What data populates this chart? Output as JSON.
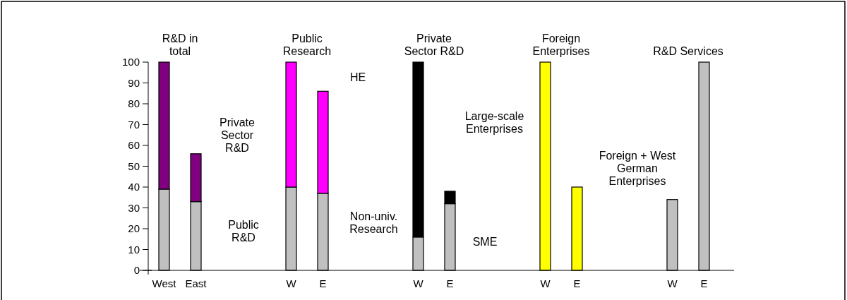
{
  "chart_data": {
    "type": "bar",
    "stacked": true,
    "grid": false,
    "categories": [
      "West",
      "East",
      null,
      null,
      "W",
      "E",
      null,
      null,
      "W",
      "E",
      null,
      null,
      "W",
      "E",
      null,
      null,
      "W",
      "E"
    ],
    "series": [
      {
        "colors": [
          "#c0c0c0",
          "#c0c0c0",
          null,
          null,
          "#c0c0c0",
          "#c0c0c0",
          null,
          null,
          "#c0c0c0",
          "#c0c0c0",
          null,
          null,
          "#ffff00",
          "#ffff00",
          null,
          null,
          "#c0c0c0",
          "#c0c0c0"
        ],
        "values": [
          39,
          33,
          null,
          null,
          40,
          37,
          null,
          null,
          16,
          32,
          null,
          null,
          100,
          40,
          null,
          null,
          34,
          100
        ]
      },
      {
        "colors": [
          "#800080",
          "#800080",
          null,
          null,
          "#ff00ff",
          "#ff00ff",
          null,
          null,
          "#000000",
          "#000000",
          null,
          null,
          null,
          null,
          null,
          null,
          null,
          null
        ],
        "values": [
          61,
          23,
          null,
          null,
          60,
          49,
          null,
          null,
          84,
          6,
          null,
          null,
          null,
          null,
          null,
          null,
          null,
          null
        ]
      }
    ],
    "ylim": [
      0,
      100
    ],
    "yticks": [
      0,
      10,
      20,
      30,
      40,
      50,
      60,
      70,
      80,
      90,
      100
    ],
    "annotations": [
      "R&D in total",
      "Public Research",
      "Private Sector R&D",
      "Foreign Enterprises",
      "R&D Services",
      "Private Sector R&D",
      "Public R&D",
      "HE",
      "Non-univ. Research",
      "Large-scale Enterprises",
      "SME",
      "Foreign + West German Enterprises"
    ]
  }
}
